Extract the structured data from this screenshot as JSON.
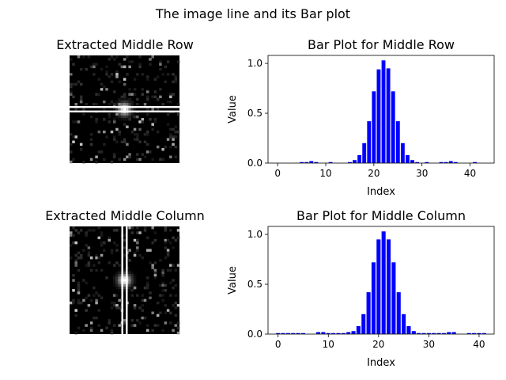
{
  "figure": {
    "suptitle": "The image line and its Bar plot"
  },
  "images": [
    {
      "title": "Extracted Middle Row",
      "highlight": "row"
    },
    {
      "title": "Extracted Middle Column",
      "highlight": "column"
    }
  ],
  "chart_data": [
    {
      "type": "bar",
      "title": "Bar Plot for Middle Row",
      "xlabel": "Index",
      "ylabel": "Value",
      "bar_color": "#0000ff",
      "xlim": [
        -2,
        45
      ],
      "ylim": [
        0,
        1.08
      ],
      "xticks": [
        0,
        10,
        20,
        30,
        40
      ],
      "yticks": [
        0.0,
        0.5,
        1.0
      ],
      "x": [
        0,
        1,
        2,
        3,
        4,
        5,
        6,
        7,
        8,
        9,
        10,
        11,
        12,
        13,
        14,
        15,
        16,
        17,
        18,
        19,
        20,
        21,
        22,
        23,
        24,
        25,
        26,
        27,
        28,
        29,
        30,
        31,
        32,
        33,
        34,
        35,
        36,
        37,
        38,
        39,
        40,
        41,
        42
      ],
      "values": [
        0.0,
        0.0,
        0.0,
        0.0,
        0.0,
        0.01,
        0.01,
        0.02,
        0.01,
        0.0,
        0.0,
        0.01,
        0.0,
        0.0,
        0.0,
        0.01,
        0.03,
        0.08,
        0.2,
        0.42,
        0.72,
        0.94,
        1.03,
        0.95,
        0.72,
        0.42,
        0.2,
        0.08,
        0.03,
        0.01,
        0.0,
        0.01,
        0.0,
        0.0,
        0.01,
        0.01,
        0.02,
        0.01,
        0.0,
        0.0,
        0.0,
        0.01,
        0.0
      ]
    },
    {
      "type": "bar",
      "title": "Bar Plot for Middle Column",
      "xlabel": "Index",
      "ylabel": "Value",
      "bar_color": "#0000ff",
      "xlim": [
        -2,
        43
      ],
      "ylim": [
        0,
        1.08
      ],
      "xticks": [
        0,
        10,
        20,
        30,
        40
      ],
      "yticks": [
        0.0,
        0.5,
        1.0
      ],
      "x": [
        0,
        1,
        2,
        3,
        4,
        5,
        6,
        7,
        8,
        9,
        10,
        11,
        12,
        13,
        14,
        15,
        16,
        17,
        18,
        19,
        20,
        21,
        22,
        23,
        24,
        25,
        26,
        27,
        28,
        29,
        30,
        31,
        32,
        33,
        34,
        35,
        36,
        37,
        38,
        39,
        40,
        41
      ],
      "values": [
        0.01,
        0.01,
        0.01,
        0.01,
        0.01,
        0.01,
        0.0,
        0.0,
        0.02,
        0.02,
        0.01,
        0.01,
        0.01,
        0.01,
        0.02,
        0.03,
        0.08,
        0.2,
        0.42,
        0.72,
        0.95,
        1.03,
        0.95,
        0.72,
        0.42,
        0.2,
        0.08,
        0.03,
        0.01,
        0.01,
        0.01,
        0.01,
        0.01,
        0.01,
        0.02,
        0.02,
        0.0,
        0.0,
        0.01,
        0.01,
        0.01,
        0.01
      ]
    }
  ]
}
